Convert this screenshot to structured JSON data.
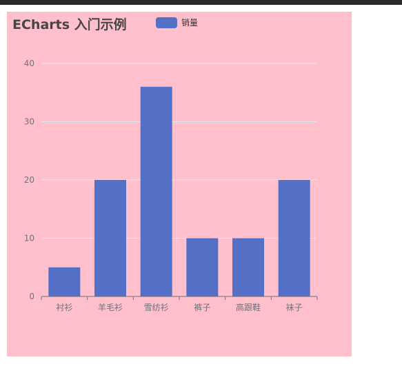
{
  "chart_data": {
    "type": "bar",
    "title": "ECharts 入门示例",
    "legend": [
      "销量"
    ],
    "categories": [
      "衬衫",
      "羊毛衫",
      "雪纺衫",
      "裤子",
      "高跟鞋",
      "袜子"
    ],
    "series": [
      {
        "name": "销量",
        "values": [
          5,
          20,
          36,
          10,
          10,
          20
        ]
      }
    ],
    "ylim": [
      0,
      40
    ],
    "yticks": [
      0,
      10,
      20,
      30,
      40
    ],
    "grid": true,
    "legend_position": "top",
    "colors": {
      "bar": "#5470c6",
      "background": "#ffc0cb",
      "gridline": "#e0e6f1",
      "axis": "#6e7079"
    }
  }
}
